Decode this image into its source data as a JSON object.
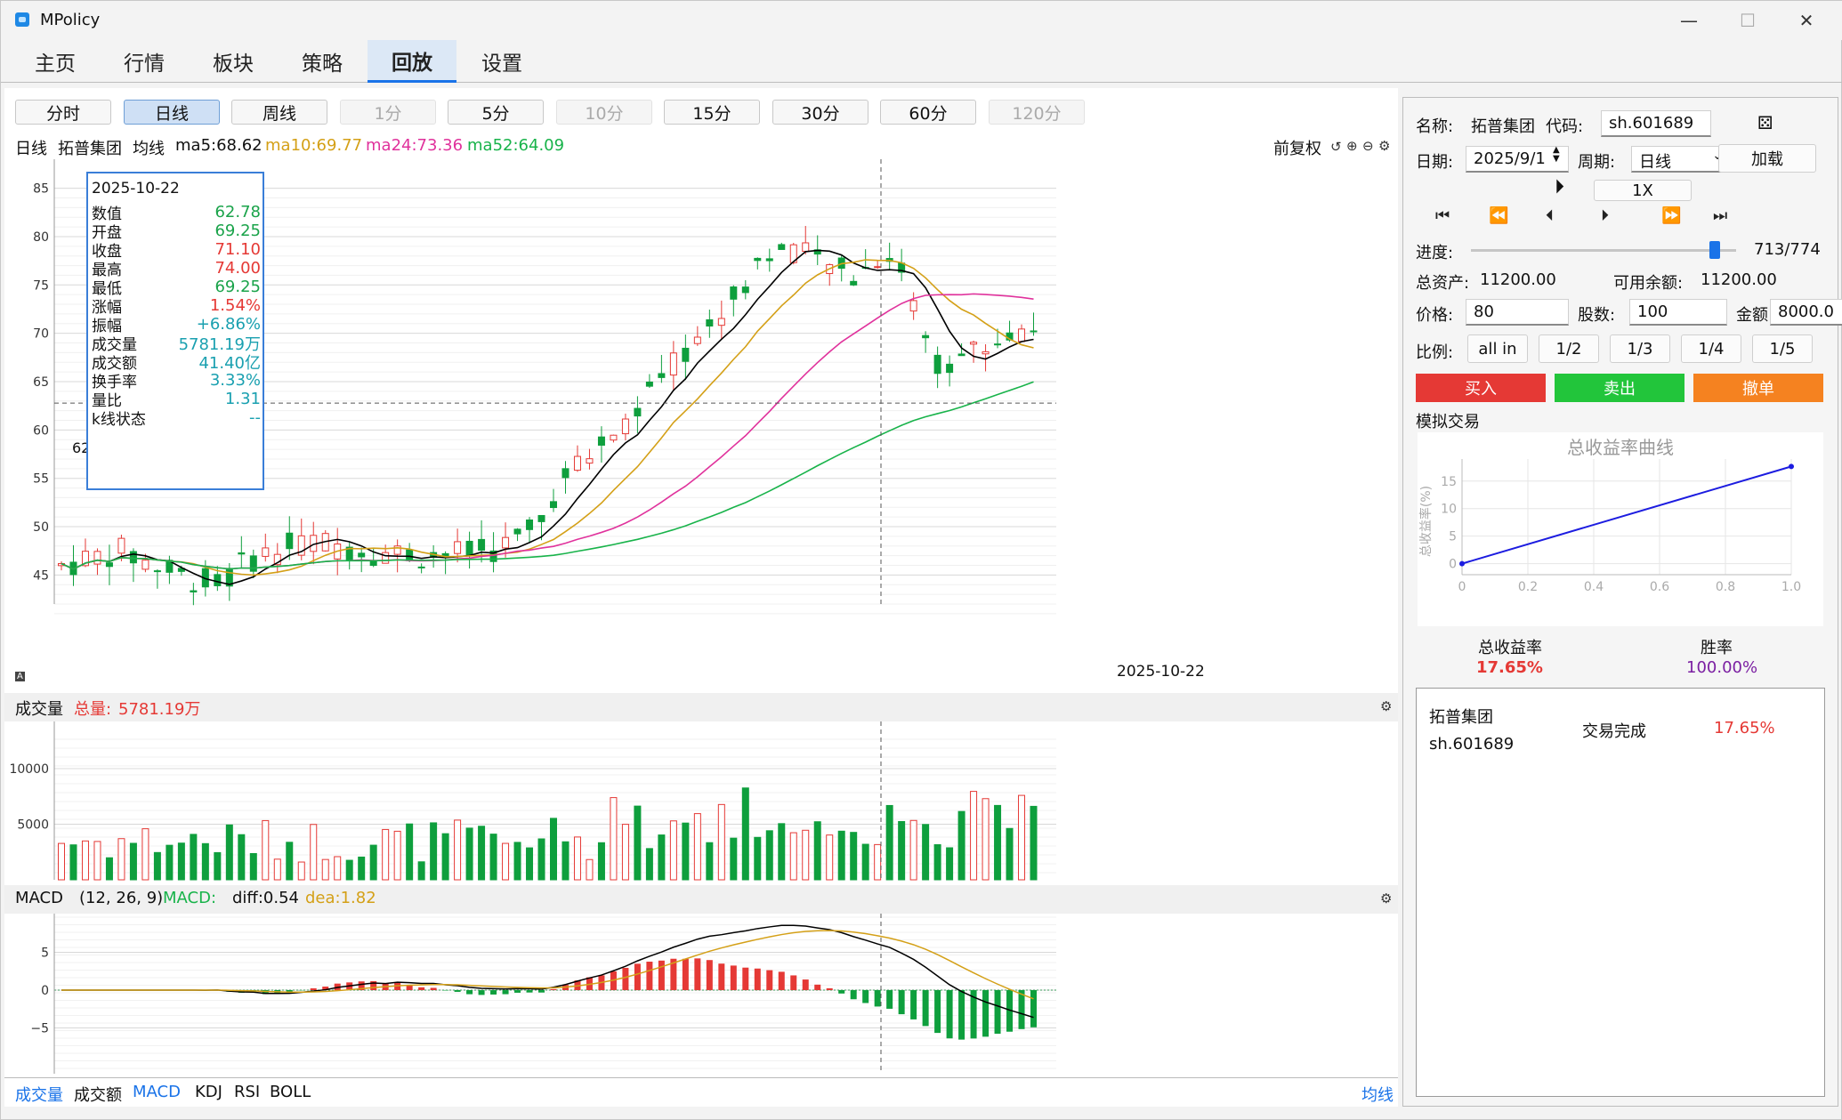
{
  "window": {
    "title": "MPolicy",
    "controls": {
      "minimize": "—",
      "maximize": "☐",
      "close": "✕"
    }
  },
  "menu": [
    {
      "label": "主页",
      "active": false
    },
    {
      "label": "行情",
      "active": false
    },
    {
      "label": "板块",
      "active": false
    },
    {
      "label": "策略",
      "active": false
    },
    {
      "label": "回放",
      "active": true
    },
    {
      "label": "设置",
      "active": false
    }
  ],
  "timeframes": [
    {
      "label": "分时",
      "state": "normal"
    },
    {
      "label": "日线",
      "state": "active"
    },
    {
      "label": "周线",
      "state": "normal"
    },
    {
      "label": "1分",
      "state": "disabled"
    },
    {
      "label": "5分",
      "state": "normal"
    },
    {
      "label": "10分",
      "state": "disabled"
    },
    {
      "label": "15分",
      "state": "normal"
    },
    {
      "label": "30分",
      "state": "normal"
    },
    {
      "label": "60分",
      "state": "normal"
    },
    {
      "label": "120分",
      "state": "disabled"
    }
  ],
  "kline_header": {
    "period": "日线",
    "stock_name": "拓普集团",
    "ma_label": "均线",
    "ma5": "ma5:68.62",
    "ma10": "ma10:69.77",
    "ma24": "ma24:73.36",
    "ma52": "ma52:64.09",
    "adjust": "前复权",
    "colors": {
      "ma5": "#000000",
      "ma10": "#d4a017",
      "ma24": "#e0329c",
      "ma52": "#18b34a"
    }
  },
  "info_box": {
    "date": "2025-10-22",
    "rows": [
      {
        "label": "数值",
        "value": "62.78",
        "color": "#1aa34a"
      },
      {
        "label": "开盘",
        "value": "69.25",
        "color": "#1aa34a"
      },
      {
        "label": "收盘",
        "value": "71.10",
        "color": "#e53935"
      },
      {
        "label": "最高",
        "value": "74.00",
        "color": "#e53935"
      },
      {
        "label": "最低",
        "value": "69.25",
        "color": "#1aa34a"
      },
      {
        "label": "涨幅",
        "value": "1.54%",
        "color": "#e53935"
      },
      {
        "label": "振幅",
        "value": "+6.86%",
        "color": "#1aa0b0"
      },
      {
        "label": "成交量",
        "value": "5781.19万",
        "color": "#1aa0b0"
      },
      {
        "label": "成交额",
        "value": "41.40亿",
        "color": "#1aa0b0"
      },
      {
        "label": "换手率",
        "value": "3.33%",
        "color": "#1aa0b0"
      },
      {
        "label": "量比",
        "value": "1.31",
        "color": "#1aa0b0"
      },
      {
        "label": "k线状态",
        "value": "--",
        "color": "#1aa0b0"
      }
    ]
  },
  "kline_chart": {
    "y_ticks": [
      "85",
      "80",
      "75",
      "70",
      "65",
      "60",
      "55",
      "50",
      "45"
    ],
    "crosshair_value": "62.78",
    "crosshair_date": "2025-10-22",
    "a_marker": "A"
  },
  "volume_section": {
    "title": "成交量",
    "total_label": "总量:",
    "total_value": "5781.19万",
    "y_ticks": [
      "10000",
      "5000"
    ]
  },
  "macd_section": {
    "title": "MACD",
    "params": "(12, 26, 9)",
    "macd_label": "MACD:",
    "diff": "diff:0.54",
    "dea": "dea:1.82",
    "y_ticks": [
      "5",
      "0",
      "−5"
    ]
  },
  "bottom_tabs": [
    {
      "label": "成交量",
      "active": true
    },
    {
      "label": "成交额",
      "active": false
    },
    {
      "label": "MACD",
      "active": true
    },
    {
      "label": "KDJ",
      "active": false
    },
    {
      "label": "RSI",
      "active": false
    },
    {
      "label": "BOLL",
      "active": false
    }
  ],
  "bottom_right_link": "均线",
  "replay": {
    "name_label": "名称:",
    "name_value": "拓普集团",
    "code_label": "代码:",
    "code_value": "sh.601689",
    "date_label": "日期:",
    "date_value": "2025/9/1",
    "period_label": "周期:",
    "period_value": "日线",
    "load_button": "加载",
    "speed": "1X",
    "progress_label": "进度:",
    "progress_text": "713/774",
    "progress_fraction": 0.921,
    "total_assets_label": "总资产:",
    "total_assets_value": "11200.00",
    "available_label": "可用余额:",
    "available_value": "11200.00",
    "price_label": "价格:",
    "price_value": "80",
    "shares_label": "股数:",
    "shares_value": "100",
    "amount_label": "金额:",
    "amount_value": "8000.0",
    "ratio_label": "比例:",
    "ratios": [
      "all in",
      "1/2",
      "1/3",
      "1/4",
      "1/5"
    ],
    "buy": "买入",
    "sell": "卖出",
    "cancel": "撤单",
    "sim_label": "模拟交易"
  },
  "return_chart": {
    "title": "总收益率曲线",
    "ylabel": "总收益率(%)",
    "chart_data": {
      "type": "line",
      "title": "总收益率曲线",
      "ylabel": "总收益率(%)",
      "xlabel": "",
      "x": [
        0,
        1.0
      ],
      "y": [
        0,
        17.65
      ],
      "xlim": [
        0,
        1.0
      ],
      "ylim": [
        -2,
        19
      ],
      "x_ticks": [
        "0",
        "0.2",
        "0.4",
        "0.6",
        "0.8",
        "1.0"
      ],
      "y_ticks": [
        "0",
        "5",
        "10",
        "15"
      ],
      "color": "#1c1ce0"
    }
  },
  "stats": {
    "total_return_label": "总收益率",
    "total_return_value": "17.65%",
    "win_rate_label": "胜率",
    "win_rate_value": "100.00%"
  },
  "result": {
    "stock_name": "拓普集团",
    "code": "sh.601689",
    "status": "交易完成",
    "return": "17.65%"
  }
}
